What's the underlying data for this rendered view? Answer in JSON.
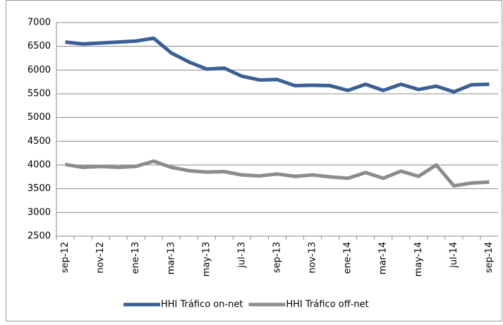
{
  "chart_data": {
    "type": "line",
    "categories": [
      "sep-12",
      null,
      "nov-12",
      null,
      "ene-13",
      null,
      "mar-13",
      null,
      "may-13",
      null,
      "jul-13",
      null,
      "sep-13",
      null,
      "nov-13",
      null,
      "ene-14",
      null,
      "mar-14",
      null,
      "may-14",
      null,
      "jul-14",
      null,
      "sep-14"
    ],
    "series": [
      {
        "name": "HHI Tráfico on-net",
        "color": "#3a5f94",
        "values": [
          6590,
          6550,
          6570,
          6590,
          6610,
          6670,
          6360,
          6170,
          6020,
          6040,
          5870,
          5790,
          5800,
          5670,
          5680,
          5670,
          5570,
          5700,
          5570,
          5700,
          5590,
          5660,
          5540,
          5690,
          5700
        ]
      },
      {
        "name": "HHI Tráfico off-net",
        "color": "#8c8c8c",
        "values": [
          4010,
          3950,
          3970,
          3950,
          3970,
          4080,
          3950,
          3880,
          3850,
          3860,
          3790,
          3770,
          3810,
          3760,
          3790,
          3750,
          3720,
          3840,
          3720,
          3870,
          3760,
          4000,
          3560,
          3620,
          3640
        ]
      }
    ],
    "ylim": [
      2500,
      7000
    ],
    "yticks": [
      2500,
      3000,
      3500,
      4000,
      4500,
      5000,
      5500,
      6000,
      6500,
      7000
    ],
    "grid": true,
    "legend": "bottom"
  }
}
